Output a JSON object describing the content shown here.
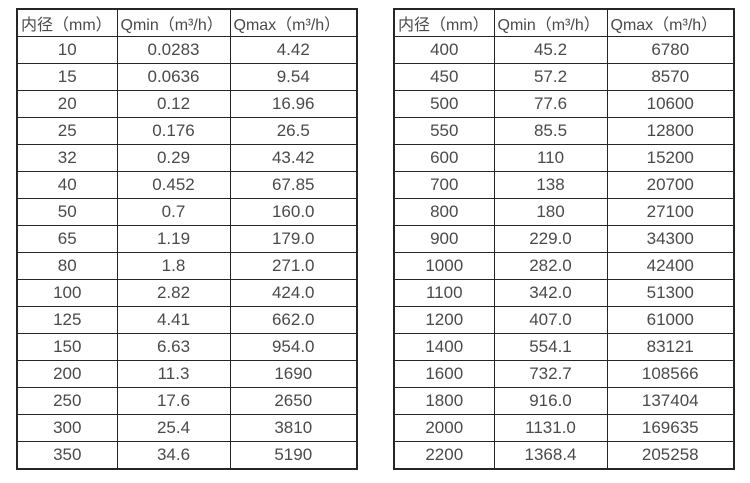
{
  "colors": {
    "border": "#262626",
    "text": "#4a4a4a",
    "background": "#ffffff"
  },
  "tables": [
    {
      "name": "flow-spec-small-diameters",
      "headers": [
        "内径（mm）",
        "Qmin（m³/h）",
        "Qmax（m³/h）"
      ],
      "rows": [
        [
          "10",
          "0.0283",
          "4.42"
        ],
        [
          "15",
          "0.0636",
          "9.54"
        ],
        [
          "20",
          "0.12",
          "16.96"
        ],
        [
          "25",
          "0.176",
          "26.5"
        ],
        [
          "32",
          "0.29",
          "43.42"
        ],
        [
          "40",
          "0.452",
          "67.85"
        ],
        [
          "50",
          "0.7",
          "160.0"
        ],
        [
          "65",
          "1.19",
          "179.0"
        ],
        [
          "80",
          "1.8",
          "271.0"
        ],
        [
          "100",
          "2.82",
          "424.0"
        ],
        [
          "125",
          "4.41",
          "662.0"
        ],
        [
          "150",
          "6.63",
          "954.0"
        ],
        [
          "200",
          "11.3",
          "1690"
        ],
        [
          "250",
          "17.6",
          "2650"
        ],
        [
          "300",
          "25.4",
          "3810"
        ],
        [
          "350",
          "34.6",
          "5190"
        ]
      ]
    },
    {
      "name": "flow-spec-large-diameters",
      "headers": [
        "内径（mm）",
        "Qmin（m³/h）",
        "Qmax（m³/h）"
      ],
      "rows": [
        [
          "400",
          "45.2",
          "6780"
        ],
        [
          "450",
          "57.2",
          "8570"
        ],
        [
          "500",
          "77.6",
          "10600"
        ],
        [
          "550",
          "85.5",
          "12800"
        ],
        [
          "600",
          "110",
          "15200"
        ],
        [
          "700",
          "138",
          "20700"
        ],
        [
          "800",
          "180",
          "27100"
        ],
        [
          "900",
          "229.0",
          "34300"
        ],
        [
          "1000",
          "282.0",
          "42400"
        ],
        [
          "1100",
          "342.0",
          "51300"
        ],
        [
          "1200",
          "407.0",
          "61000"
        ],
        [
          "1400",
          "554.1",
          "83121"
        ],
        [
          "1600",
          "732.7",
          "108566"
        ],
        [
          "1800",
          "916.0",
          "137404"
        ],
        [
          "2000",
          "1131.0",
          "169635"
        ],
        [
          "2200",
          "1368.4",
          "205258"
        ]
      ]
    }
  ]
}
